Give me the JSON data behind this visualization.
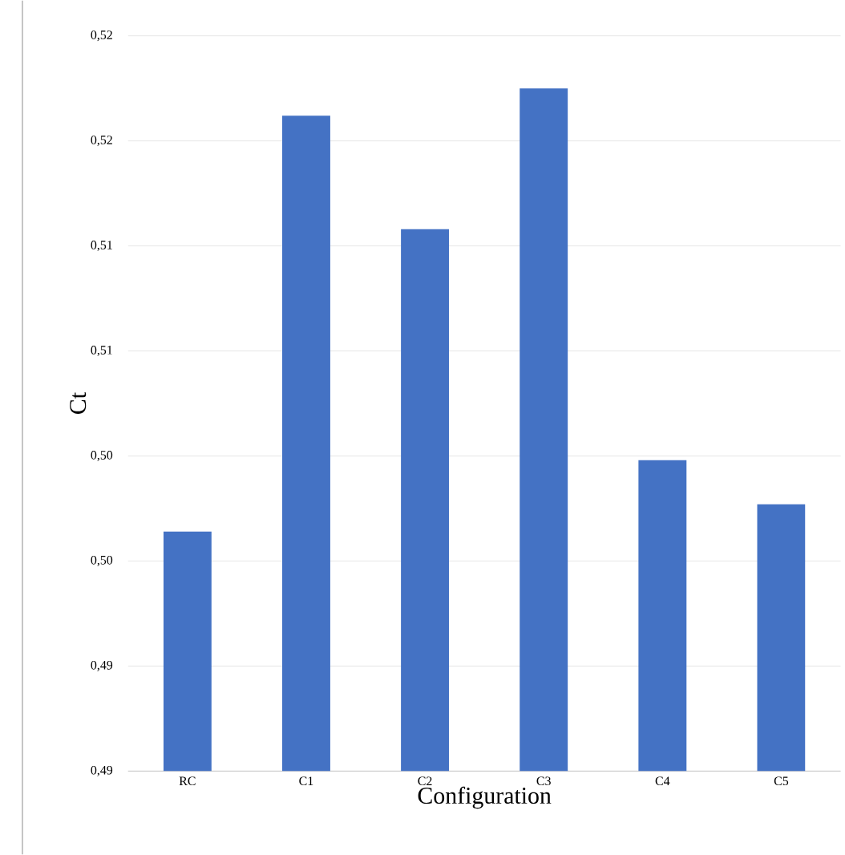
{
  "chart_data": {
    "type": "bar",
    "xlabel": "Configuration",
    "ylabel": "Ct",
    "categories": [
      "RC",
      "C1",
      "C2",
      "C3",
      "C4",
      "C5"
    ],
    "values": [
      0.4964,
      0.5162,
      0.5108,
      0.5175,
      0.4998,
      0.4977
    ],
    "color": "#4472c4",
    "ylim": [
      0.485,
      0.52
    ],
    "yticks": [
      {
        "value": 0.485,
        "label": "0,49"
      },
      {
        "value": 0.49,
        "label": "0,49"
      },
      {
        "value": 0.495,
        "label": "0,50"
      },
      {
        "value": 0.5,
        "label": "0,50"
      },
      {
        "value": 0.505,
        "label": "0,51"
      },
      {
        "value": 0.51,
        "label": "0,51"
      },
      {
        "value": 0.515,
        "label": "0,52"
      },
      {
        "value": 0.52,
        "label": "0,52"
      }
    ],
    "grid": "y"
  }
}
